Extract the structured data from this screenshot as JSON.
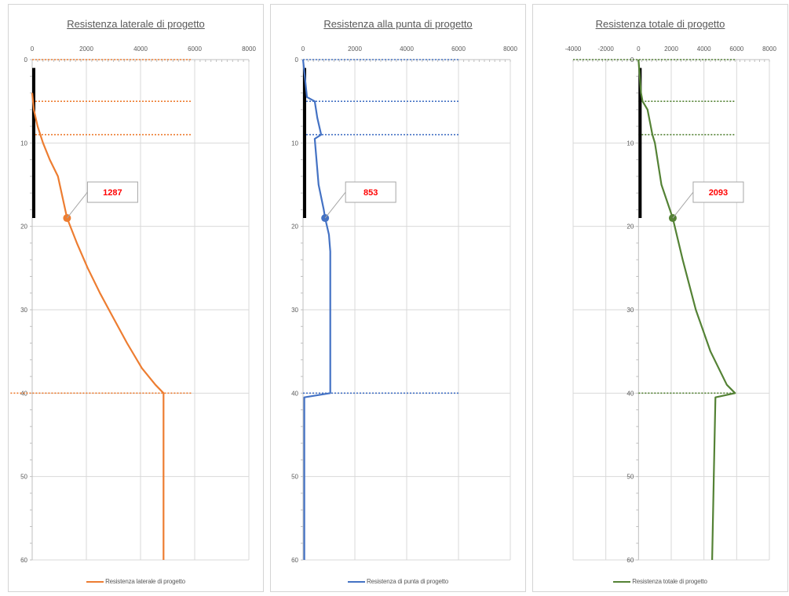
{
  "chart_data": [
    {
      "type": "line",
      "title": "Resistenza laterale di progetto",
      "legend": "Resistenza laterale di progetto",
      "color": "#ed7d31",
      "xlim": [
        0,
        8000
      ],
      "xticks": [
        0,
        2000,
        4000,
        6000,
        8000
      ],
      "ylim": [
        0,
        60
      ],
      "yticks": [
        0,
        10,
        20,
        30,
        40,
        50,
        60
      ],
      "y_reversed": true,
      "grid": true,
      "legend_position": "bottom",
      "series": [
        {
          "x": [
            0,
            60,
            200,
            400,
            650,
            950,
            1287,
            1650,
            2050,
            2500,
            3000,
            3500,
            4050,
            4550,
            4850,
            4850,
            4850,
            4850
          ],
          "y": [
            4,
            6,
            8,
            10,
            12,
            14,
            19,
            22,
            25,
            28,
            31,
            34,
            37,
            39,
            40,
            45,
            50,
            60
          ]
        }
      ],
      "dotted_lines": [
        {
          "y": 0,
          "x": [
            0,
            5900
          ]
        },
        {
          "y": 5,
          "x": [
            0,
            5900
          ]
        },
        {
          "y": 9,
          "x": [
            0,
            5900
          ]
        },
        {
          "y": 40,
          "x": [
            -800,
            5900
          ]
        }
      ],
      "pile": {
        "x": 0,
        "y": [
          1,
          19
        ]
      },
      "marker": {
        "x": 1287,
        "y": 19,
        "label": "1287"
      }
    },
    {
      "type": "line",
      "title": "Resistenza alla punta di progetto",
      "legend": "Resistenza di punta di progetto",
      "color": "#4472c4",
      "xlim": [
        0,
        8000
      ],
      "xticks": [
        0,
        2000,
        4000,
        6000,
        8000
      ],
      "ylim": [
        0,
        60
      ],
      "yticks": [
        0,
        10,
        20,
        30,
        40,
        50,
        60
      ],
      "y_reversed": true,
      "grid": true,
      "legend_position": "bottom",
      "series": [
        {
          "x": [
            0,
            150,
            450,
            550,
            700,
            450,
            600,
            800,
            853,
            1000,
            1050,
            1050,
            1050,
            50,
            50,
            50
          ],
          "y": [
            0,
            4.5,
            5,
            7,
            9,
            9.5,
            15,
            18,
            19,
            21,
            23,
            30,
            40,
            40.5,
            50,
            60
          ]
        }
      ],
      "dotted_lines": [
        {
          "y": 0,
          "x": [
            0,
            6000
          ]
        },
        {
          "y": 5,
          "x": [
            0,
            6000
          ]
        },
        {
          "y": 9,
          "x": [
            0,
            6000
          ]
        },
        {
          "y": 40,
          "x": [
            0,
            6000
          ]
        }
      ],
      "pile": {
        "x": 0,
        "y": [
          1,
          19
        ]
      },
      "marker": {
        "x": 853,
        "y": 19,
        "label": "853"
      }
    },
    {
      "type": "line",
      "title": "Resistenza totale di progetto",
      "legend": "Resistenza totale di progetto",
      "color": "#548235",
      "xlim": [
        -4000,
        8000
      ],
      "xticks": [
        -4000,
        -2000,
        0,
        2000,
        4000,
        6000,
        8000
      ],
      "ylim": [
        0,
        60
      ],
      "yticks": [
        0,
        10,
        20,
        30,
        40,
        50,
        60
      ],
      "y_reversed": true,
      "grid": true,
      "legend_position": "bottom",
      "series": [
        {
          "x": [
            0,
            150,
            250,
            550,
            850,
            1000,
            1400,
            2093,
            2700,
            3500,
            4400,
            5400,
            5900,
            4700,
            4600,
            4500
          ],
          "y": [
            0,
            4,
            5,
            6,
            9,
            10,
            15,
            19,
            24,
            30,
            35,
            39,
            40,
            40.5,
            50,
            60
          ]
        }
      ],
      "dotted_lines": [
        {
          "y": 0,
          "x": [
            -4000,
            5900
          ]
        },
        {
          "y": 5,
          "x": [
            0,
            5900
          ]
        },
        {
          "y": 9,
          "x": [
            0,
            5900
          ]
        },
        {
          "y": 40,
          "x": [
            0,
            5900
          ]
        }
      ],
      "pile": {
        "x": 0,
        "y": [
          1,
          19
        ]
      },
      "marker": {
        "x": 2093,
        "y": 19,
        "label": "2093"
      }
    }
  ]
}
